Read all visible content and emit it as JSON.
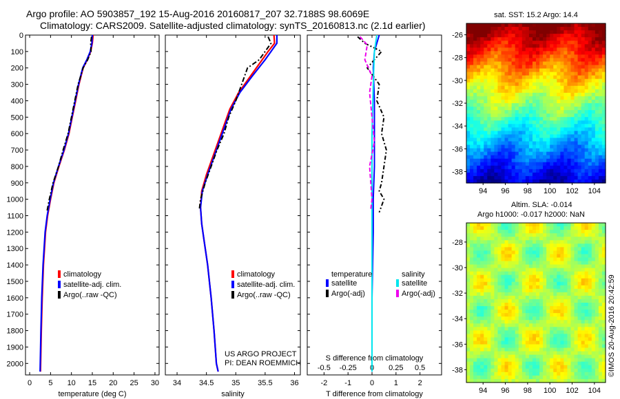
{
  "header": {
    "line1": "Argo profile: AO 5903857_192 15-Aug-2016 20160817_207 32.7188S 98.6069E",
    "line2": "Climatology: CARS2009. Satellite-adjusted climatology: synTS_20160813.nc (2.1d earlier)"
  },
  "colors": {
    "climatology": "#ff0000",
    "satellite": "#0000ff",
    "argo": "#000000",
    "sat_salinity": "#00e5ee",
    "argo_salinity": "#ee00ee"
  },
  "depth_axis": {
    "ticks": [
      0,
      100,
      200,
      300,
      400,
      500,
      600,
      700,
      800,
      900,
      1000,
      1100,
      1200,
      1300,
      1400,
      1500,
      1600,
      1700,
      1800,
      1900,
      2000
    ],
    "range": [
      0,
      2070
    ]
  },
  "legend_labels": {
    "climatology": "climatology",
    "satellite_adj": "satellite-adj. clim.",
    "argo": "Argo(..raw -QC)"
  },
  "chart_data": [
    {
      "type": "line",
      "xlabel": "temperature (deg C)",
      "xlim": [
        -1,
        31
      ],
      "xticks": [
        0,
        5,
        10,
        15,
        20,
        25,
        30
      ],
      "series": [
        {
          "name": "climatology",
          "x": [
            15.2,
            15.0,
            14.6,
            13.8,
            12.8,
            11.8,
            11.0,
            10.2,
            9.4,
            8.3,
            7.0,
            5.8,
            5.0,
            4.3,
            3.8,
            3.3,
            3.0,
            2.8,
            2.6
          ],
          "y": [
            0,
            50,
            100,
            150,
            200,
            300,
            400,
            500,
            600,
            700,
            800,
            900,
            1000,
            1100,
            1200,
            1400,
            1600,
            1800,
            2050
          ]
        },
        {
          "name": "satellite-adj. clim.",
          "x": [
            15.0,
            14.9,
            14.5,
            13.7,
            12.7,
            11.7,
            10.9,
            10.1,
            9.3,
            8.2,
            6.9,
            5.7,
            4.9,
            4.2,
            3.7,
            3.2,
            2.9,
            2.7,
            2.5
          ],
          "y": [
            0,
            50,
            100,
            150,
            200,
            300,
            400,
            500,
            600,
            700,
            800,
            900,
            1000,
            1100,
            1200,
            1400,
            1600,
            1800,
            2050
          ]
        },
        {
          "name": "Argo(..raw -QC)",
          "x": [
            14.8,
            14.6,
            14.7,
            13.9,
            12.8,
            11.6,
            10.8,
            10.0,
            9.2,
            8.0,
            6.9,
            5.6,
            4.7,
            4.1
          ],
          "y": [
            10,
            50,
            100,
            150,
            200,
            300,
            400,
            500,
            600,
            700,
            800,
            900,
            1000,
            1080
          ]
        }
      ]
    },
    {
      "type": "line",
      "xlabel": "salinity",
      "xlim": [
        33.8,
        36.1
      ],
      "xticks": [
        34,
        34.5,
        35,
        35.5,
        36
      ],
      "annotation": [
        "US ARGO PROJECT",
        "PI: DEAN ROEMMICH"
      ],
      "series": [
        {
          "name": "climatology",
          "x": [
            35.65,
            35.66,
            35.55,
            35.45,
            35.25,
            35.05,
            34.9,
            34.8,
            34.7,
            34.6,
            34.5,
            34.42,
            34.4,
            34.42,
            34.46,
            34.52,
            34.58,
            34.63,
            34.67,
            34.7
          ],
          "y": [
            0,
            50,
            100,
            150,
            250,
            350,
            450,
            550,
            650,
            750,
            850,
            950,
            1050,
            1150,
            1250,
            1400,
            1600,
            1800,
            2000,
            2050
          ]
        },
        {
          "name": "satellite-adj. clim.",
          "x": [
            35.7,
            35.7,
            35.6,
            35.5,
            35.28,
            35.07,
            34.92,
            34.82,
            34.72,
            34.62,
            34.52,
            34.43,
            34.4,
            34.42,
            34.46,
            34.52,
            34.58,
            34.63,
            34.67,
            34.7
          ],
          "y": [
            0,
            50,
            100,
            150,
            250,
            350,
            450,
            550,
            650,
            750,
            850,
            950,
            1050,
            1150,
            1250,
            1400,
            1600,
            1800,
            2000,
            2050
          ]
        },
        {
          "name": "Argo(..raw -QC)",
          "x": [
            35.55,
            35.6,
            35.4,
            35.2,
            35.1,
            35.0,
            34.88,
            34.8,
            34.68,
            34.58,
            34.48,
            34.4,
            34.38
          ],
          "y": [
            10,
            50,
            150,
            200,
            300,
            400,
            500,
            600,
            700,
            800,
            900,
            1000,
            1060
          ]
        }
      ]
    },
    {
      "type": "line",
      "xlabel": "T difference from climatology",
      "xlabel_top": "S difference from climatology",
      "xlim": [
        -2.7,
        2.9
      ],
      "xticks": [
        -2,
        -1,
        0,
        1,
        2
      ],
      "xticks_top": [
        -0.5,
        -0.25,
        0,
        0.25,
        0.5
      ],
      "legend": {
        "temperature": "temperature",
        "salinity": "salinity",
        "satellite": "satellite",
        "argo_adj": "Argo(-adj)"
      },
      "series": [
        {
          "name": "satellite",
          "x": [
            0.3,
            0.2,
            0.1,
            0.05,
            0.1,
            0.1,
            0.1,
            0.05,
            0.05,
            0.0,
            0.0
          ],
          "y": [
            0,
            50,
            100,
            200,
            400,
            600,
            800,
            1000,
            1200,
            1600,
            2050
          ]
        },
        {
          "name": "Argo(-adj)",
          "x": [
            -0.6,
            -0.3,
            0.4,
            -0.2,
            0.3,
            0.2,
            0.5,
            0.4,
            0.6,
            0.5,
            0.4,
            0.3,
            0.5,
            0.3
          ],
          "y": [
            10,
            50,
            100,
            200,
            300,
            400,
            500,
            600,
            700,
            800,
            900,
            950,
            1000,
            1080
          ]
        },
        {
          "name": "satellite",
          "x": [
            0.2,
            0.1,
            0.05,
            0.0,
            0.0,
            0.0,
            0.0,
            0.0
          ],
          "y": [
            0,
            100,
            300,
            600,
            900,
            1200,
            1600,
            2050
          ]
        },
        {
          "name": "Argo(-adj)",
          "x": [
            -0.5,
            -0.2,
            -0.3,
            0.0,
            -0.1,
            0.0,
            0.1,
            -0.1,
            0.0,
            -0.05
          ],
          "y": [
            10,
            60,
            150,
            250,
            350,
            500,
            650,
            800,
            1000,
            1060
          ]
        }
      ]
    },
    {
      "type": "heatmap",
      "title": "sat. SST: 15.2  Argo: 14.4",
      "xlim": [
        92.5,
        105
      ],
      "ylim": [
        -39,
        -25
      ],
      "xticks": [
        94,
        96,
        98,
        100,
        102,
        104
      ],
      "yticks": [
        -26,
        -28,
        -30,
        -32,
        -34,
        -36,
        -38
      ],
      "colormap": "jet"
    },
    {
      "type": "heatmap",
      "title": [
        "Altim. SLA: -0.014",
        "Argo h1000: -0.017 h2000: NaN"
      ],
      "xlim": [
        92.5,
        105
      ],
      "ylim": [
        -39,
        -26.5
      ],
      "xticks": [
        94,
        96,
        98,
        100,
        102,
        104
      ],
      "yticks": [
        -28,
        -30,
        -32,
        -34,
        -36,
        -38
      ],
      "colormap": "jet"
    }
  ],
  "footer": {
    "credit": "©IMOS 20-Aug-2016 20:42:59"
  }
}
